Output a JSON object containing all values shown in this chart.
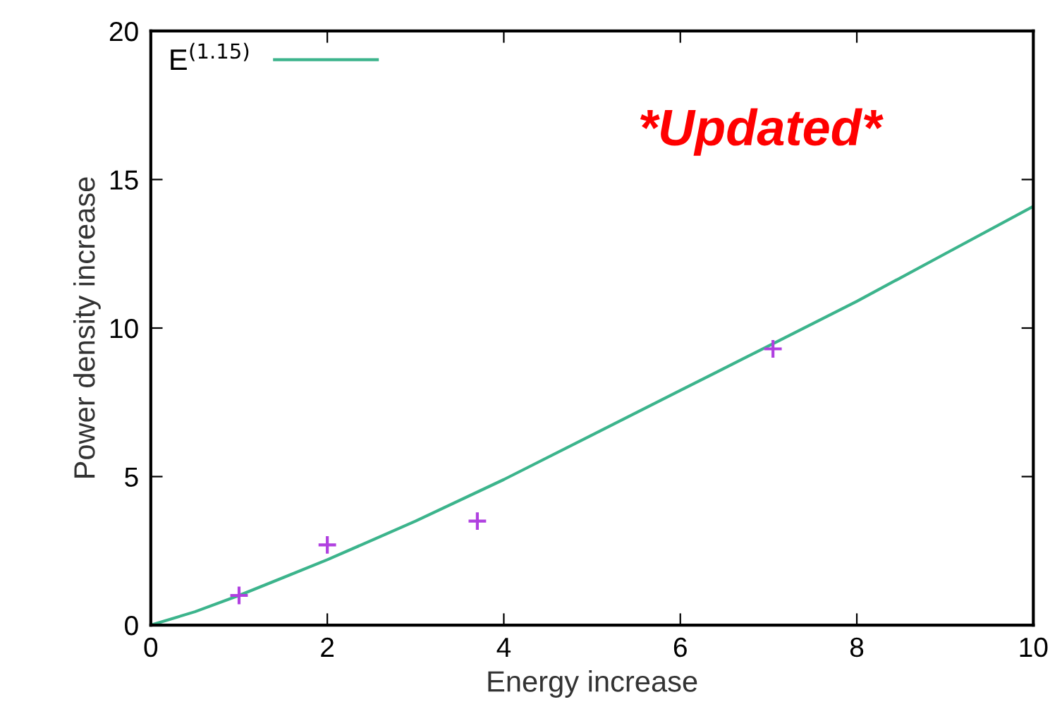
{
  "chart_data": {
    "type": "line",
    "xlabel": "Energy increase",
    "ylabel": "Power density increase",
    "xlim": [
      0,
      10
    ],
    "ylim": [
      0,
      20
    ],
    "xticks": [
      0,
      2,
      4,
      6,
      8,
      10
    ],
    "yticks": [
      0,
      5,
      10,
      15,
      20
    ],
    "series": [
      {
        "name": "E$^{(1.15)}$",
        "color": "#3cb48c",
        "x": [
          0,
          0.5,
          1,
          1.5,
          2,
          3,
          4,
          5,
          6,
          7,
          8,
          9,
          10
        ],
        "values": [
          0,
          0.45,
          1.0,
          1.6,
          2.2,
          3.5,
          4.9,
          6.4,
          7.9,
          9.4,
          10.9,
          12.5,
          14.1
        ]
      },
      {
        "type": "scatter",
        "color": "#b040e0",
        "marker": "cross",
        "x": [
          1,
          2,
          3.7,
          7.05
        ],
        "values": [
          1.0,
          2.7,
          3.5,
          9.3
        ]
      }
    ],
    "legend": "top left",
    "grid": false,
    "annotations": [
      "*Updated*"
    ]
  }
}
